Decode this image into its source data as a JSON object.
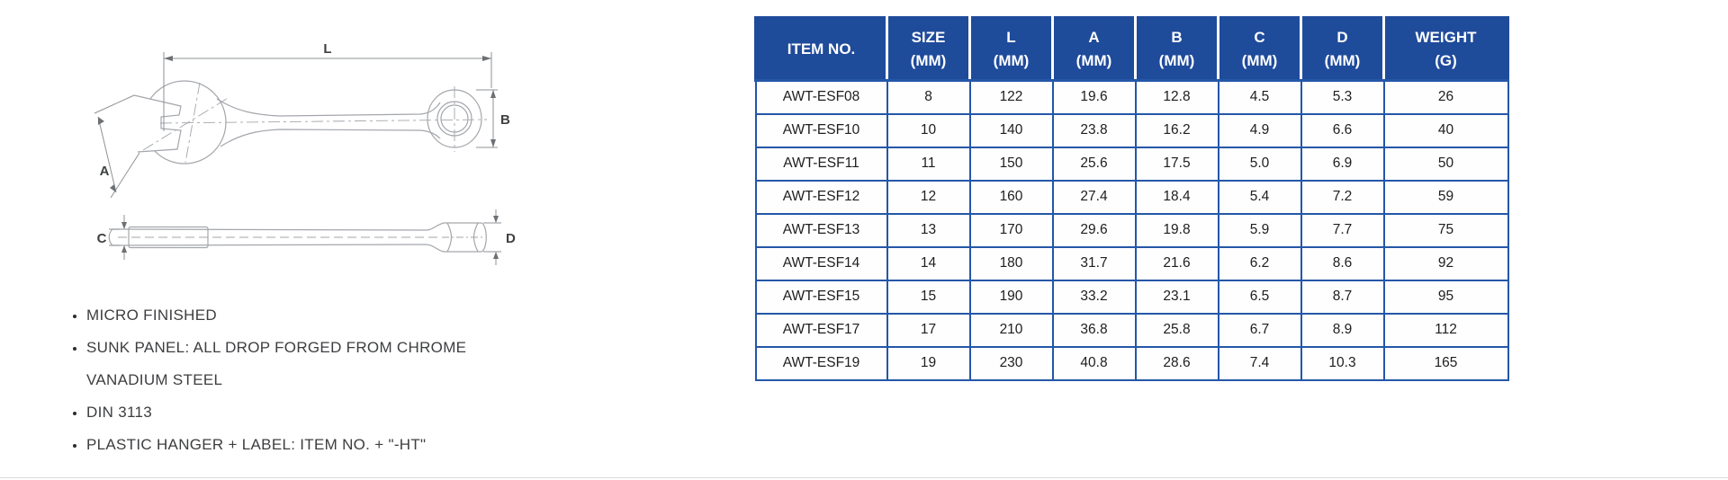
{
  "page": {
    "background": "#ffffff",
    "description": "Combination wrench specification sheet"
  },
  "colors": {
    "table_header_bg": "#1f4b9b",
    "table_grid": "#2457a8",
    "table_text": "#1e1e20",
    "feature_text": "#3d3e40",
    "drawing_stroke": "#a3a6ab",
    "dim_label": "#3f4042",
    "bottom_rule": "#d9d9d9"
  },
  "diagram": {
    "name": "combination-wrench-technical-drawing",
    "labels": {
      "L": "L",
      "A": "A",
      "B": "B",
      "C": "C",
      "D": "D"
    }
  },
  "features": {
    "items": [
      "MICRO FINISHED",
      "SUNK PANEL: ALL DROP FORGED FROM CHROME VANADIUM STEEL",
      "DIN 3113",
      "PLASTIC HANGER + LABEL: ITEM NO. + \"-HT\""
    ]
  },
  "table": {
    "headers": [
      {
        "l1": "ITEM NO.",
        "l2": ""
      },
      {
        "l1": "SIZE",
        "l2": "(MM)"
      },
      {
        "l1": "L",
        "l2": "(MM)"
      },
      {
        "l1": "A",
        "l2": "(MM)"
      },
      {
        "l1": "B",
        "l2": "(MM)"
      },
      {
        "l1": "C",
        "l2": "(MM)"
      },
      {
        "l1": "D",
        "l2": "(MM)"
      },
      {
        "l1": "WEIGHT",
        "l2": "(G)"
      }
    ],
    "rows": [
      [
        "AWT-ESF08",
        "8",
        "122",
        "19.6",
        "12.8",
        "4.5",
        "5.3",
        "26"
      ],
      [
        "AWT-ESF10",
        "10",
        "140",
        "23.8",
        "16.2",
        "4.9",
        "6.6",
        "40"
      ],
      [
        "AWT-ESF11",
        "11",
        "150",
        "25.6",
        "17.5",
        "5.0",
        "6.9",
        "50"
      ],
      [
        "AWT-ESF12",
        "12",
        "160",
        "27.4",
        "18.4",
        "5.4",
        "7.2",
        "59"
      ],
      [
        "AWT-ESF13",
        "13",
        "170",
        "29.6",
        "19.8",
        "5.9",
        "7.7",
        "75"
      ],
      [
        "AWT-ESF14",
        "14",
        "180",
        "31.7",
        "21.6",
        "6.2",
        "8.6",
        "92"
      ],
      [
        "AWT-ESF15",
        "15",
        "190",
        "33.2",
        "23.1",
        "6.5",
        "8.7",
        "95"
      ],
      [
        "AWT-ESF17",
        "17",
        "210",
        "36.8",
        "25.8",
        "6.7",
        "8.9",
        "112"
      ],
      [
        "AWT-ESF19",
        "19",
        "230",
        "40.8",
        "28.6",
        "7.4",
        "10.3",
        "165"
      ]
    ]
  }
}
